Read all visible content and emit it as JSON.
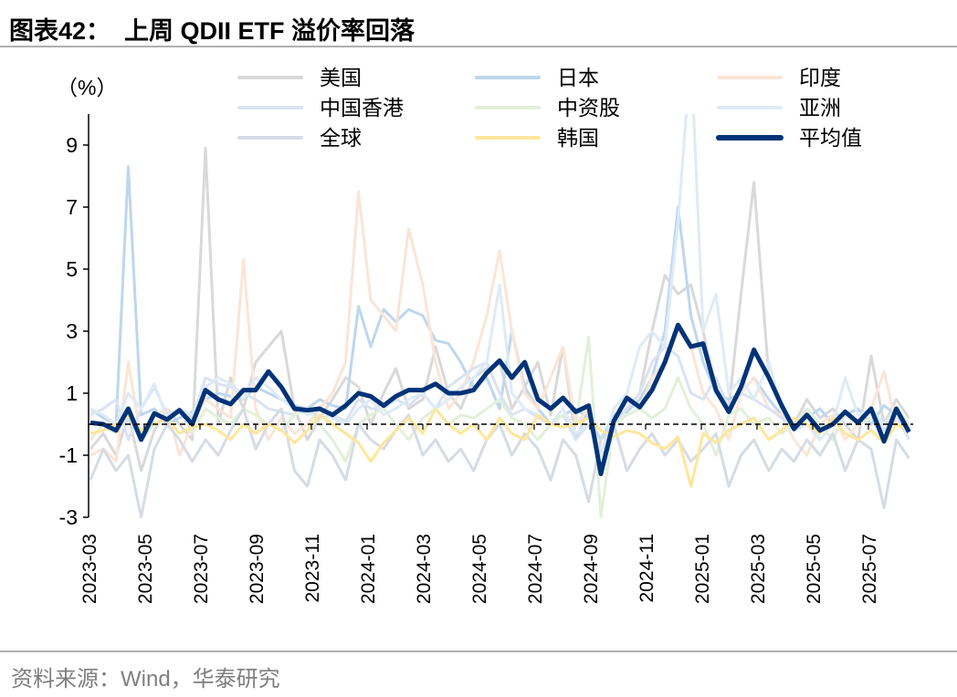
{
  "title": "图表42：  上周 QDII ETF 溢价率回落",
  "source": "资料来源：Wind，华泰研究",
  "chart_data": {
    "type": "line",
    "title": "",
    "ylabel": "（%）",
    "xlabel": "",
    "ylim": [
      -3,
      10
    ],
    "yticks": [
      -3,
      -1,
      1,
      3,
      5,
      7,
      9
    ],
    "xtick_labels": [
      "2023-03",
      "2023-05",
      "2023-07",
      "2023-09",
      "2023-11",
      "2024-01",
      "2024-03",
      "2024-05",
      "2024-07",
      "2024-09",
      "2024-11",
      "2025-01",
      "2025-03",
      "2025-05",
      "2025-07"
    ],
    "reference_line": {
      "y": 0,
      "style": "dashed",
      "color": "#000000"
    },
    "grid": false,
    "legend_placement": "top",
    "x": [
      "2023-03-03",
      "2023-03-17",
      "2023-03-31",
      "2023-04-14",
      "2023-04-28",
      "2023-05-12",
      "2023-05-26",
      "2023-06-09",
      "2023-06-23",
      "2023-07-07",
      "2023-07-21",
      "2023-08-04",
      "2023-08-18",
      "2023-09-01",
      "2023-09-15",
      "2023-09-29",
      "2023-10-13",
      "2023-10-27",
      "2023-11-10",
      "2023-11-24",
      "2023-12-08",
      "2023-12-22",
      "2024-01-05",
      "2024-01-19",
      "2024-02-02",
      "2024-02-16",
      "2024-03-01",
      "2024-03-15",
      "2024-03-29",
      "2024-04-12",
      "2024-04-26",
      "2024-05-10",
      "2024-05-24",
      "2024-06-07",
      "2024-06-21",
      "2024-07-05",
      "2024-07-19",
      "2024-08-02",
      "2024-08-16",
      "2024-08-30",
      "2024-09-13",
      "2024-09-27",
      "2024-10-11",
      "2024-10-25",
      "2024-11-08",
      "2024-11-22",
      "2024-12-06",
      "2024-12-20",
      "2025-01-03",
      "2025-01-17",
      "2025-01-31",
      "2025-02-14",
      "2025-02-28",
      "2025-03-14",
      "2025-03-28",
      "2025-04-11",
      "2025-04-25",
      "2025-05-09",
      "2025-05-23",
      "2025-06-06",
      "2025-06-20",
      "2025-07-04",
      "2025-07-18",
      "2025-08-01",
      "2025-08-15"
    ],
    "series": [
      {
        "name": "美国",
        "color": "#d9d9d9",
        "width": 3,
        "values": [
          -0.8,
          -0.3,
          -1.0,
          0.3,
          -1.5,
          -0.2,
          0.5,
          0.0,
          -0.5,
          8.9,
          0.0,
          1.5,
          0.5,
          2.0,
          2.5,
          3.0,
          0.5,
          -0.5,
          0.2,
          0.8,
          1.5,
          1.2,
          0.0,
          1.0,
          1.8,
          0.5,
          0.8,
          2.5,
          1.0,
          0.5,
          1.5,
          1.8,
          2.0,
          0.5,
          1.2,
          2.0,
          0.3,
          2.5,
          -0.5,
          0.5,
          -1.0,
          0.0,
          0.5,
          1.0,
          3.0,
          4.8,
          4.2,
          4.5,
          3.0,
          1.0,
          0.5,
          4.2,
          7.8,
          1.5,
          0.5,
          0.0,
          0.8,
          0.2,
          0.5,
          0.0,
          -0.5,
          2.2,
          0.0,
          0.8,
          0.2
        ]
      },
      {
        "name": "日本",
        "color": "#bdd7ee",
        "width": 3,
        "values": [
          0.5,
          0.2,
          0.0,
          8.3,
          0.3,
          0.5,
          0.0,
          0.2,
          0.4,
          0.8,
          1.0,
          0.9,
          0.8,
          1.2,
          1.0,
          0.8,
          0.6,
          0.5,
          0.8,
          0.6,
          0.5,
          3.8,
          2.5,
          3.7,
          3.3,
          3.7,
          3.5,
          2.7,
          2.6,
          2.0,
          1.2,
          1.5,
          0.5,
          3.0,
          1.2,
          0.5,
          0.0,
          0.3,
          0.5,
          0.2,
          -0.5,
          0.3,
          0.4,
          0.8,
          1.5,
          3.0,
          7.0,
          3.5,
          2.0,
          1.0,
          0.8,
          1.0,
          1.5,
          0.8,
          0.3,
          0.0,
          0.2,
          0.5,
          0.0,
          0.3,
          0.5,
          0.0,
          0.6,
          0.3,
          0.0
        ]
      },
      {
        "name": "印度",
        "color": "#fbe5d6",
        "width": 3,
        "values": [
          -1.0,
          -0.8,
          -1.2,
          2.0,
          -0.5,
          0.3,
          0.5,
          -1.0,
          0.0,
          0.8,
          0.5,
          0.2,
          5.3,
          0.5,
          -0.5,
          0.2,
          -0.3,
          0.0,
          0.5,
          1.0,
          2.0,
          7.5,
          4.0,
          3.5,
          3.0,
          6.3,
          4.5,
          2.0,
          0.5,
          1.0,
          2.0,
          3.5,
          5.6,
          3.0,
          1.0,
          0.5,
          1.5,
          2.5,
          0.0,
          0.5,
          -1.0,
          0.0,
          0.3,
          0.5,
          1.5,
          2.0,
          3.0,
          2.5,
          1.0,
          0.5,
          -0.5,
          1.0,
          1.5,
          0.5,
          0.3,
          -0.5,
          -1.0,
          0.0,
          0.3,
          -0.5,
          0.0,
          0.5,
          1.7,
          0.0,
          -0.3
        ]
      },
      {
        "name": "中国香港",
        "color": "#dae3f3",
        "width": 3,
        "values": [
          0.3,
          0.5,
          0.8,
          -0.5,
          0.5,
          1.2,
          0.3,
          0.5,
          0.2,
          1.5,
          1.3,
          1.2,
          1.0,
          0.8,
          0.5,
          0.4,
          0.3,
          0.5,
          0.2,
          0.3,
          0.1,
          0.8,
          0.5,
          0.5,
          0.8,
          0.6,
          1.0,
          0.5,
          1.2,
          1.5,
          1.8,
          2.0,
          1.0,
          0.3,
          0.5,
          0.2,
          0.0,
          0.3,
          -0.5,
          0.0,
          -1.0,
          0.0,
          0.5,
          1.0,
          2.0,
          2.5,
          2.2,
          1.0,
          0.8,
          1.5,
          0.5,
          1.0,
          0.8,
          0.5,
          0.2,
          -0.2,
          0.0,
          -0.5,
          0.0,
          0.3,
          0.0,
          0.5,
          -0.2,
          0.3,
          -0.5
        ]
      },
      {
        "name": "中资股",
        "color": "#e2f0d9",
        "width": 3,
        "values": [
          -0.5,
          0.0,
          -0.3,
          0.3,
          -0.5,
          0.0,
          0.2,
          0.5,
          -0.3,
          0.5,
          0.2,
          0.0,
          0.5,
          0.3,
          0.0,
          -0.2,
          0.3,
          0.5,
          0.0,
          -0.5,
          -1.2,
          0.0,
          0.3,
          0.5,
          0.0,
          -0.5,
          0.2,
          0.5,
          0.0,
          0.3,
          0.2,
          0.5,
          0.8,
          0.2,
          0.0,
          -0.5,
          0.0,
          0.3,
          0.0,
          2.8,
          -3.0,
          0.0,
          0.3,
          0.5,
          0.2,
          0.5,
          1.5,
          0.5,
          0.0,
          -1.0,
          0.3,
          0.5,
          0.0,
          0.2,
          -0.3,
          0.0,
          0.5,
          0.0,
          -0.5,
          0.3,
          0.0,
          0.2,
          0.0,
          0.5,
          0.0
        ]
      },
      {
        "name": "亚洲",
        "color": "#deebf7",
        "width": 3,
        "values": [
          0.5,
          0.3,
          0.0,
          1.0,
          0.5,
          1.3,
          0.2,
          0.5,
          0.3,
          1.2,
          1.5,
          1.3,
          0.8,
          1.5,
          1.2,
          0.8,
          0.5,
          0.3,
          0.5,
          0.2,
          0.0,
          0.5,
          0.8,
          0.3,
          0.5,
          0.8,
          1.0,
          0.5,
          0.8,
          1.2,
          1.5,
          2.0,
          4.5,
          1.0,
          0.5,
          0.3,
          0.0,
          0.5,
          -0.3,
          0.0,
          -1.0,
          0.5,
          1.0,
          2.5,
          3.0,
          2.5,
          6.5,
          12,
          3.0,
          4.2,
          1.0,
          1.5,
          0.8,
          2.0,
          0.5,
          0.0,
          0.3,
          -0.5,
          0.0,
          1.5,
          0.3,
          0.5,
          0.0,
          0.3,
          0.0
        ]
      },
      {
        "name": "全球",
        "color": "#d6dce5",
        "width": 3,
        "values": [
          -1.8,
          -0.8,
          -1.5,
          -1.0,
          -3.0,
          -0.8,
          0.0,
          -0.5,
          -1.2,
          -0.5,
          -1.0,
          -0.2,
          0.5,
          -0.8,
          0.0,
          0.5,
          -1.5,
          -2.0,
          -0.5,
          -1.0,
          -1.8,
          0.0,
          -0.5,
          -0.8,
          -0.2,
          0.3,
          -1.0,
          -0.5,
          -1.2,
          -0.8,
          -1.5,
          -0.5,
          0.0,
          -1.0,
          -0.3,
          -0.8,
          -1.8,
          -0.5,
          -1.0,
          -2.5,
          -0.5,
          0.0,
          -1.5,
          -0.8,
          -0.3,
          -1.0,
          -0.5,
          -1.2,
          -0.8,
          -0.3,
          -2.0,
          -1.0,
          -0.5,
          -1.5,
          -0.8,
          -1.2,
          -0.5,
          -1.0,
          -0.3,
          -1.5,
          -0.5,
          -0.8,
          -2.7,
          -0.5,
          -1.1
        ]
      },
      {
        "name": "韩国",
        "color": "#ffe699",
        "width": 3,
        "values": [
          -0.3,
          -0.2,
          0.0,
          0.3,
          -0.2,
          0.0,
          0.2,
          -0.3,
          -0.1,
          0.0,
          -0.2,
          -0.5,
          0.0,
          -0.3,
          0.0,
          -0.2,
          -0.6,
          -0.2,
          0.3,
          0.0,
          -0.3,
          -0.6,
          -1.2,
          -0.6,
          -0.2,
          0.2,
          -0.3,
          0.5,
          0.0,
          -0.3,
          0.0,
          -0.5,
          0.2,
          -0.3,
          -0.5,
          0.3,
          0.0,
          -0.1,
          0.0,
          0.2,
          -0.2,
          -0.4,
          -0.2,
          -0.3,
          -0.6,
          -0.8,
          -0.4,
          -2.0,
          -0.3,
          -0.6,
          -0.2,
          0.0,
          0.2,
          -0.5,
          -0.2,
          0.2,
          0.0,
          -0.3,
          0.2,
          -0.3,
          -0.5,
          -0.2,
          -0.6,
          0.0,
          -0.2
        ]
      },
      {
        "name": "平均值",
        "color": "#003378",
        "width": 5,
        "values": [
          0.05,
          0.0,
          -0.2,
          0.5,
          -0.5,
          0.35,
          0.15,
          0.45,
          0.0,
          1.1,
          0.8,
          0.65,
          1.1,
          1.1,
          1.7,
          1.2,
          0.5,
          0.45,
          0.5,
          0.3,
          0.6,
          1.0,
          0.9,
          0.6,
          0.9,
          1.1,
          1.1,
          1.3,
          1.0,
          1.0,
          1.1,
          1.65,
          2.05,
          1.5,
          2.0,
          0.8,
          0.5,
          0.85,
          0.4,
          0.6,
          -1.6,
          0.1,
          0.85,
          0.55,
          1.1,
          2.0,
          3.2,
          2.5,
          2.6,
          1.1,
          0.4,
          1.2,
          2.4,
          1.5,
          0.6,
          -0.15,
          0.3,
          -0.2,
          0.0,
          0.4,
          0.05,
          0.5,
          -0.55,
          0.5,
          -0.25
        ]
      }
    ]
  }
}
